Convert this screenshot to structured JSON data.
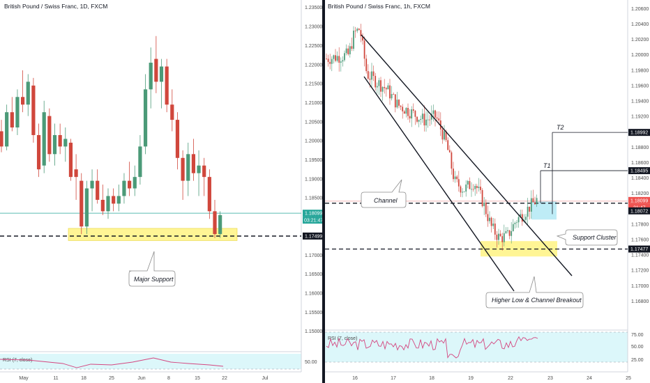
{
  "colors": {
    "up": "#4b9a78",
    "down": "#d0473c",
    "support_zone": "#fff27a",
    "target_zone": "#b7eaf5",
    "rsi": "#d4457f",
    "rsi_band": "#dcf7fa",
    "price_line": "#26a69a"
  },
  "chart_data": [
    {
      "type": "candlestick",
      "title": "British Pound / Swiss Franc, 1D, FXCM",
      "ylim": [
        1.145,
        1.2355
      ],
      "y_ticks": [
        "1.23500",
        "1.23000",
        "1.22500",
        "1.22000",
        "1.21500",
        "1.21000",
        "1.20500",
        "1.20000",
        "1.19500",
        "1.19000",
        "1.18500",
        "1.18000",
        "1.17500",
        "1.17000",
        "1.16500",
        "1.16000",
        "1.15500",
        "1.15000"
      ],
      "x_ticks": [
        "May",
        "11",
        "18",
        "25",
        "Jun",
        "8",
        "15",
        "22",
        "Jul"
      ],
      "price_labels": {
        "last": "1.18099",
        "countdown": "03:21:47",
        "support": "1.17499"
      },
      "annotations": [
        "Major Support"
      ],
      "support_level": 1.17499,
      "support_zone": [
        1.1738,
        1.177
      ],
      "last_price": 1.18099,
      "ohlc": [
        [
          1.2025,
          1.2055,
          1.197,
          1.1985
        ],
        [
          1.1985,
          1.2095,
          1.1975,
          1.2075
        ],
        [
          1.2075,
          1.2115,
          1.2025,
          1.2035
        ],
        [
          1.2035,
          1.2135,
          1.2015,
          1.2115
        ],
        [
          1.2115,
          1.2185,
          1.2075,
          1.2095
        ],
        [
          1.2095,
          1.2175,
          1.2065,
          1.2155
        ],
        [
          1.2145,
          1.2165,
          1.1995,
          1.2015
        ],
        [
          1.2015,
          1.2045,
          1.1905,
          1.1925
        ],
        [
          1.1935,
          1.2105,
          1.1915,
          1.2075
        ],
        [
          1.2065,
          1.2085,
          1.1945,
          1.1965
        ],
        [
          1.1965,
          1.2045,
          1.1935,
          1.2015
        ],
        [
          1.2015,
          1.2045,
          1.1965,
          1.1985
        ],
        [
          1.1985,
          1.2035,
          1.1945,
          1.2005
        ],
        [
          1.1995,
          1.2005,
          1.1895,
          1.1905
        ],
        [
          1.1925,
          1.1965,
          1.1845,
          1.1905
        ],
        [
          1.1895,
          1.1915,
          1.1755,
          1.1775
        ],
        [
          1.1775,
          1.1895,
          1.1755,
          1.1875
        ],
        [
          1.1875,
          1.1925,
          1.1815,
          1.1895
        ],
        [
          1.1895,
          1.1925,
          1.1835,
          1.1845
        ],
        [
          1.1845,
          1.1885,
          1.1805,
          1.1815
        ],
        [
          1.1815,
          1.1875,
          1.1795,
          1.1855
        ],
        [
          1.1855,
          1.1875,
          1.1815,
          1.1835
        ],
        [
          1.1835,
          1.1885,
          1.1815,
          1.1855
        ],
        [
          1.1855,
          1.1915,
          1.1835,
          1.1895
        ],
        [
          1.1895,
          1.1945,
          1.1855,
          1.1875
        ],
        [
          1.1875,
          1.1935,
          1.1855,
          1.1905
        ],
        [
          1.1905,
          1.2015,
          1.1885,
          1.1985
        ],
        [
          1.1985,
          1.2175,
          1.1965,
          1.2135
        ],
        [
          1.2135,
          1.2245,
          1.2085,
          1.2205
        ],
        [
          1.2215,
          1.2275,
          1.2125,
          1.2155
        ],
        [
          1.2155,
          1.2215,
          1.2085,
          1.2195
        ],
        [
          1.2195,
          1.2215,
          1.2075,
          1.2095
        ],
        [
          1.2095,
          1.2135,
          1.2025,
          1.2055
        ],
        [
          1.2055,
          1.2075,
          1.1925,
          1.1955
        ],
        [
          1.1955,
          1.1975,
          1.1845,
          1.1895
        ],
        [
          1.1895,
          1.1995,
          1.1855,
          1.1965
        ],
        [
          1.1965,
          1.2005,
          1.1895,
          1.1915
        ],
        [
          1.1915,
          1.1975,
          1.1855,
          1.1935
        ],
        [
          1.1935,
          1.1955,
          1.1855,
          1.1905
        ],
        [
          1.1905,
          1.1925,
          1.1795,
          1.1815
        ],
        [
          1.1815,
          1.1845,
          1.1745,
          1.1755
        ],
        [
          1.1755,
          1.1815,
          1.1745,
          1.1805
        ]
      ],
      "rsi": {
        "label": "RSI (7, close)",
        "tick": "50.00"
      }
    },
    {
      "type": "candlestick",
      "title": "British Pound / Swiss Franc, 1h, FXCM",
      "ylim": [
        1.1646,
        1.2064
      ],
      "y_ticks": [
        "1.20600",
        "1.20400",
        "1.20200",
        "1.20000",
        "1.19800",
        "1.19600",
        "1.19400",
        "1.19200",
        "1.19000",
        "1.18800",
        "1.18600",
        "1.18400",
        "1.18200",
        "1.18000",
        "1.17800",
        "1.17600",
        "1.17400",
        "1.17200",
        "1.17000",
        "1.16800"
      ],
      "x_ticks": [
        "16",
        "17",
        "18",
        "19",
        "22",
        "23",
        "24",
        "25"
      ],
      "price_labels": {
        "t2": "1.18992",
        "t1": "1.18495",
        "last": "1.18099",
        "countdown": "21:47",
        "cluster": "1.18072",
        "support": "1.17477"
      },
      "annotations": [
        "Channel",
        "Support Cluster",
        "Higher Low & Channel Breakout",
        "T1",
        "T2"
      ],
      "levels": {
        "t2": 1.18992,
        "t1": 1.18495,
        "last": 1.18099,
        "cluster": 1.18072,
        "support": 1.17477
      },
      "support_zone": [
        1.1738,
        1.1758
      ],
      "target_zone": [
        1.1786,
        1.181
      ],
      "channel": {
        "upper": [
          [
            1.2038,
            1.1738
          ]
        ],
        "lower": [
          [
            1.2016,
            1.1707
          ]
        ]
      },
      "rsi": {
        "label": "RSI (7, close)",
        "ticks": [
          "75.00",
          "50.00",
          "25.00"
        ],
        "ylim": [
          10,
          85
        ],
        "upper": 70,
        "lower": 30
      }
    }
  ]
}
